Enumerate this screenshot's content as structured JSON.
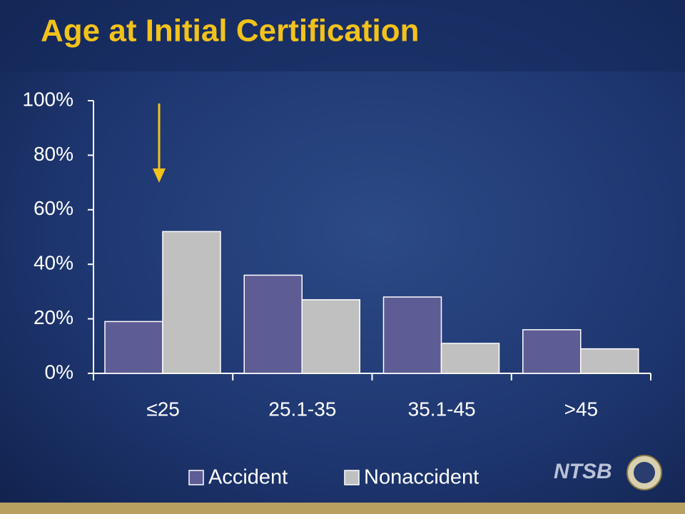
{
  "chart_data": {
    "type": "bar",
    "title": "Age at Initial Certification",
    "categories": [
      "≤25",
      "25.1-35",
      "35.1-45",
      ">45"
    ],
    "series": [
      {
        "name": "Accident",
        "color": "#5e5c94",
        "values": [
          19,
          36,
          28,
          16
        ]
      },
      {
        "name": "Nonaccident",
        "color": "#c0c0c0",
        "values": [
          52,
          27,
          11,
          9
        ]
      }
    ],
    "ylim": [
      0,
      100
    ],
    "yticks": [
      {
        "value": 0,
        "label": "0%"
      },
      {
        "value": 20,
        "label": "20%"
      },
      {
        "value": 40,
        "label": "40%"
      },
      {
        "value": 60,
        "label": "60%"
      },
      {
        "value": 80,
        "label": "80%"
      },
      {
        "value": 100,
        "label": "100%"
      }
    ],
    "grid": false,
    "legend": "bottom"
  },
  "branding": "NTSB"
}
